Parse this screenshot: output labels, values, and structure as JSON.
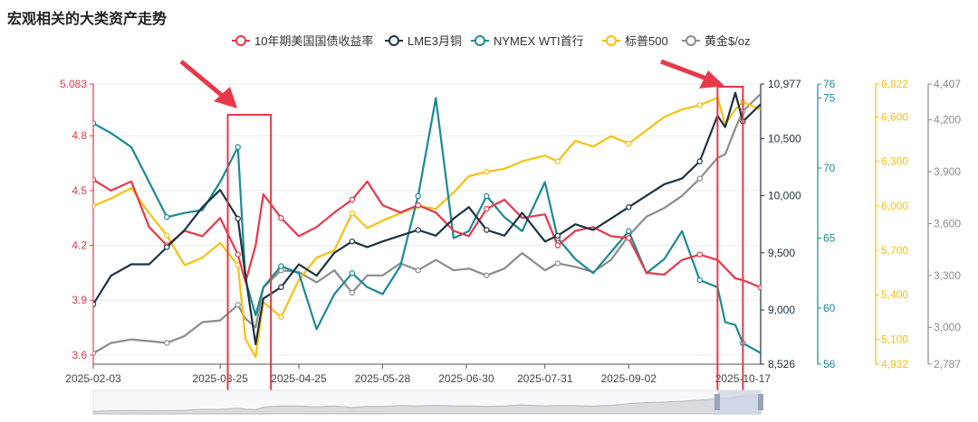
{
  "title": "宏观相关的大类资产走势",
  "chart_data": {
    "type": "line",
    "title": "宏观相关的大类资产走势",
    "x_ticks": [
      "2025-02-03",
      "2025-03-25",
      "2025-04-25",
      "2025-05-28",
      "2025-06-30",
      "2025-07-31",
      "2025-09-02",
      "2025-10-17"
    ],
    "x_range": [
      "2025-02-03",
      "2025-10-24"
    ],
    "legend_position": "top-center",
    "series": [
      {
        "name": "10年期美国国债收益率",
        "color": "#e8394a",
        "axis": "y1",
        "values": [
          {
            "x": "2025-02-03",
            "y": 4.56
          },
          {
            "x": "2025-02-10",
            "y": 4.5
          },
          {
            "x": "2025-02-18",
            "y": 4.55
          },
          {
            "x": "2025-02-25",
            "y": 4.3
          },
          {
            "x": "2025-03-04",
            "y": 4.2
          },
          {
            "x": "2025-03-11",
            "y": 4.28
          },
          {
            "x": "2025-03-18",
            "y": 4.25
          },
          {
            "x": "2025-03-25",
            "y": 4.35
          },
          {
            "x": "2025-04-01",
            "y": 4.15
          },
          {
            "x": "2025-04-04",
            "y": 4.0
          },
          {
            "x": "2025-04-08",
            "y": 4.2
          },
          {
            "x": "2025-04-11",
            "y": 4.48
          },
          {
            "x": "2025-04-18",
            "y": 4.35
          },
          {
            "x": "2025-04-25",
            "y": 4.25
          },
          {
            "x": "2025-05-02",
            "y": 4.3
          },
          {
            "x": "2025-05-09",
            "y": 4.38
          },
          {
            "x": "2025-05-16",
            "y": 4.45
          },
          {
            "x": "2025-05-22",
            "y": 4.55
          },
          {
            "x": "2025-05-28",
            "y": 4.42
          },
          {
            "x": "2025-06-04",
            "y": 4.38
          },
          {
            "x": "2025-06-11",
            "y": 4.42
          },
          {
            "x": "2025-06-18",
            "y": 4.38
          },
          {
            "x": "2025-06-25",
            "y": 4.28
          },
          {
            "x": "2025-07-01",
            "y": 4.25
          },
          {
            "x": "2025-07-08",
            "y": 4.4
          },
          {
            "x": "2025-07-15",
            "y": 4.45
          },
          {
            "x": "2025-07-22",
            "y": 4.35
          },
          {
            "x": "2025-07-31",
            "y": 4.37
          },
          {
            "x": "2025-08-05",
            "y": 4.2
          },
          {
            "x": "2025-08-12",
            "y": 4.28
          },
          {
            "x": "2025-08-19",
            "y": 4.3
          },
          {
            "x": "2025-08-26",
            "y": 4.25
          },
          {
            "x": "2025-09-02",
            "y": 4.24
          },
          {
            "x": "2025-09-09",
            "y": 4.05
          },
          {
            "x": "2025-09-16",
            "y": 4.04
          },
          {
            "x": "2025-09-23",
            "y": 4.12
          },
          {
            "x": "2025-09-30",
            "y": 4.15
          },
          {
            "x": "2025-10-07",
            "y": 4.12
          },
          {
            "x": "2025-10-14",
            "y": 4.02
          },
          {
            "x": "2025-10-17",
            "y": 4.01
          },
          {
            "x": "2025-10-24",
            "y": 3.97
          }
        ]
      },
      {
        "name": "LME3月铜",
        "color": "#1c3341",
        "axis": "y2",
        "values": [
          {
            "x": "2025-02-03",
            "y": 9050
          },
          {
            "x": "2025-02-10",
            "y": 9300
          },
          {
            "x": "2025-02-18",
            "y": 9400
          },
          {
            "x": "2025-02-25",
            "y": 9400
          },
          {
            "x": "2025-03-04",
            "y": 9550
          },
          {
            "x": "2025-03-11",
            "y": 9700
          },
          {
            "x": "2025-03-18",
            "y": 9900
          },
          {
            "x": "2025-03-25",
            "y": 10050
          },
          {
            "x": "2025-04-01",
            "y": 9800
          },
          {
            "x": "2025-04-04",
            "y": 9300
          },
          {
            "x": "2025-04-08",
            "y": 8700
          },
          {
            "x": "2025-04-11",
            "y": 9100
          },
          {
            "x": "2025-04-18",
            "y": 9200
          },
          {
            "x": "2025-04-25",
            "y": 9400
          },
          {
            "x": "2025-05-02",
            "y": 9300
          },
          {
            "x": "2025-05-09",
            "y": 9500
          },
          {
            "x": "2025-05-16",
            "y": 9600
          },
          {
            "x": "2025-05-22",
            "y": 9550
          },
          {
            "x": "2025-05-28",
            "y": 9600
          },
          {
            "x": "2025-06-04",
            "y": 9650
          },
          {
            "x": "2025-06-11",
            "y": 9700
          },
          {
            "x": "2025-06-18",
            "y": 9650
          },
          {
            "x": "2025-06-25",
            "y": 9800
          },
          {
            "x": "2025-07-01",
            "y": 9900
          },
          {
            "x": "2025-07-08",
            "y": 9700
          },
          {
            "x": "2025-07-15",
            "y": 9650
          },
          {
            "x": "2025-07-22",
            "y": 9850
          },
          {
            "x": "2025-07-31",
            "y": 9600
          },
          {
            "x": "2025-08-05",
            "y": 9650
          },
          {
            "x": "2025-08-12",
            "y": 9750
          },
          {
            "x": "2025-08-19",
            "y": 9700
          },
          {
            "x": "2025-08-26",
            "y": 9800
          },
          {
            "x": "2025-09-02",
            "y": 9900
          },
          {
            "x": "2025-09-09",
            "y": 10000
          },
          {
            "x": "2025-09-16",
            "y": 10100
          },
          {
            "x": "2025-09-23",
            "y": 10150
          },
          {
            "x": "2025-09-30",
            "y": 10300
          },
          {
            "x": "2025-10-07",
            "y": 10700
          },
          {
            "x": "2025-10-10",
            "y": 10600
          },
          {
            "x": "2025-10-14",
            "y": 10900
          },
          {
            "x": "2025-10-17",
            "y": 10650
          },
          {
            "x": "2025-10-24",
            "y": 10800
          }
        ]
      },
      {
        "name": "NYMEX WTI首行",
        "color": "#1b8a94",
        "axis": "y3",
        "values": [
          {
            "x": "2025-02-03",
            "y": 73.2
          },
          {
            "x": "2025-02-10",
            "y": 72.5
          },
          {
            "x": "2025-02-18",
            "y": 71.5
          },
          {
            "x": "2025-02-25",
            "y": 69.0
          },
          {
            "x": "2025-03-04",
            "y": 66.5
          },
          {
            "x": "2025-03-11",
            "y": 66.8
          },
          {
            "x": "2025-03-18",
            "y": 67.0
          },
          {
            "x": "2025-03-25",
            "y": 69.0
          },
          {
            "x": "2025-04-01",
            "y": 71.5
          },
          {
            "x": "2025-04-04",
            "y": 62.0
          },
          {
            "x": "2025-04-08",
            "y": 59.5
          },
          {
            "x": "2025-04-11",
            "y": 61.5
          },
          {
            "x": "2025-04-18",
            "y": 63.0
          },
          {
            "x": "2025-04-25",
            "y": 62.5
          },
          {
            "x": "2025-05-02",
            "y": 58.5
          },
          {
            "x": "2025-05-09",
            "y": 61.0
          },
          {
            "x": "2025-05-16",
            "y": 62.5
          },
          {
            "x": "2025-05-22",
            "y": 61.5
          },
          {
            "x": "2025-05-28",
            "y": 61.0
          },
          {
            "x": "2025-06-04",
            "y": 63.0
          },
          {
            "x": "2025-06-11",
            "y": 68.0
          },
          {
            "x": "2025-06-18",
            "y": 75.0
          },
          {
            "x": "2025-06-25",
            "y": 65.0
          },
          {
            "x": "2025-07-01",
            "y": 65.5
          },
          {
            "x": "2025-07-08",
            "y": 68.0
          },
          {
            "x": "2025-07-15",
            "y": 66.5
          },
          {
            "x": "2025-07-22",
            "y": 65.5
          },
          {
            "x": "2025-07-31",
            "y": 69.0
          },
          {
            "x": "2025-08-05",
            "y": 65.0
          },
          {
            "x": "2025-08-12",
            "y": 63.5
          },
          {
            "x": "2025-08-19",
            "y": 62.5
          },
          {
            "x": "2025-08-26",
            "y": 64.0
          },
          {
            "x": "2025-09-02",
            "y": 65.5
          },
          {
            "x": "2025-09-09",
            "y": 62.5
          },
          {
            "x": "2025-09-16",
            "y": 63.5
          },
          {
            "x": "2025-09-23",
            "y": 65.5
          },
          {
            "x": "2025-09-30",
            "y": 62.0
          },
          {
            "x": "2025-10-07",
            "y": 61.5
          },
          {
            "x": "2025-10-10",
            "y": 59.0
          },
          {
            "x": "2025-10-14",
            "y": 58.8
          },
          {
            "x": "2025-10-17",
            "y": 57.5
          },
          {
            "x": "2025-10-24",
            "y": 56.8
          }
        ]
      },
      {
        "name": "标普500",
        "color": "#f5c20d",
        "axis": "y4",
        "values": [
          {
            "x": "2025-02-03",
            "y": 6000
          },
          {
            "x": "2025-02-10",
            "y": 6050
          },
          {
            "x": "2025-02-18",
            "y": 6120
          },
          {
            "x": "2025-02-25",
            "y": 5950
          },
          {
            "x": "2025-03-04",
            "y": 5800
          },
          {
            "x": "2025-03-11",
            "y": 5600
          },
          {
            "x": "2025-03-18",
            "y": 5650
          },
          {
            "x": "2025-03-25",
            "y": 5750
          },
          {
            "x": "2025-04-01",
            "y": 5600
          },
          {
            "x": "2025-04-04",
            "y": 5100
          },
          {
            "x": "2025-04-08",
            "y": 4980
          },
          {
            "x": "2025-04-11",
            "y": 5350
          },
          {
            "x": "2025-04-18",
            "y": 5250
          },
          {
            "x": "2025-04-25",
            "y": 5500
          },
          {
            "x": "2025-05-02",
            "y": 5650
          },
          {
            "x": "2025-05-09",
            "y": 5700
          },
          {
            "x": "2025-05-16",
            "y": 5950
          },
          {
            "x": "2025-05-22",
            "y": 5850
          },
          {
            "x": "2025-05-28",
            "y": 5900
          },
          {
            "x": "2025-06-04",
            "y": 5950
          },
          {
            "x": "2025-06-11",
            "y": 6000
          },
          {
            "x": "2025-06-18",
            "y": 5980
          },
          {
            "x": "2025-06-25",
            "y": 6090
          },
          {
            "x": "2025-07-01",
            "y": 6200
          },
          {
            "x": "2025-07-08",
            "y": 6230
          },
          {
            "x": "2025-07-15",
            "y": 6250
          },
          {
            "x": "2025-07-22",
            "y": 6300
          },
          {
            "x": "2025-07-31",
            "y": 6340
          },
          {
            "x": "2025-08-05",
            "y": 6300
          },
          {
            "x": "2025-08-12",
            "y": 6440
          },
          {
            "x": "2025-08-19",
            "y": 6400
          },
          {
            "x": "2025-08-26",
            "y": 6470
          },
          {
            "x": "2025-09-02",
            "y": 6420
          },
          {
            "x": "2025-09-09",
            "y": 6510
          },
          {
            "x": "2025-09-16",
            "y": 6600
          },
          {
            "x": "2025-09-23",
            "y": 6650
          },
          {
            "x": "2025-09-30",
            "y": 6680
          },
          {
            "x": "2025-10-07",
            "y": 6730
          },
          {
            "x": "2025-10-10",
            "y": 6550
          },
          {
            "x": "2025-10-14",
            "y": 6650
          },
          {
            "x": "2025-10-17",
            "y": 6700
          },
          {
            "x": "2025-10-24",
            "y": 6650
          }
        ]
      },
      {
        "name": "黄金$/oz",
        "color": "#8c8c8c",
        "axis": "y5",
        "values": [
          {
            "x": "2025-02-03",
            "y": 2850
          },
          {
            "x": "2025-02-10",
            "y": 2910
          },
          {
            "x": "2025-02-18",
            "y": 2930
          },
          {
            "x": "2025-02-25",
            "y": 2920
          },
          {
            "x": "2025-03-04",
            "y": 2910
          },
          {
            "x": "2025-03-11",
            "y": 2950
          },
          {
            "x": "2025-03-18",
            "y": 3030
          },
          {
            "x": "2025-03-25",
            "y": 3040
          },
          {
            "x": "2025-04-01",
            "y": 3130
          },
          {
            "x": "2025-04-04",
            "y": 3050
          },
          {
            "x": "2025-04-08",
            "y": 3000
          },
          {
            "x": "2025-04-11",
            "y": 3230
          },
          {
            "x": "2025-04-18",
            "y": 3330
          },
          {
            "x": "2025-04-25",
            "y": 3320
          },
          {
            "x": "2025-05-02",
            "y": 3260
          },
          {
            "x": "2025-05-09",
            "y": 3330
          },
          {
            "x": "2025-05-16",
            "y": 3200
          },
          {
            "x": "2025-05-22",
            "y": 3300
          },
          {
            "x": "2025-05-28",
            "y": 3300
          },
          {
            "x": "2025-06-04",
            "y": 3370
          },
          {
            "x": "2025-06-11",
            "y": 3330
          },
          {
            "x": "2025-06-18",
            "y": 3390
          },
          {
            "x": "2025-06-25",
            "y": 3330
          },
          {
            "x": "2025-07-01",
            "y": 3340
          },
          {
            "x": "2025-07-08",
            "y": 3300
          },
          {
            "x": "2025-07-15",
            "y": 3340
          },
          {
            "x": "2025-07-22",
            "y": 3430
          },
          {
            "x": "2025-07-31",
            "y": 3330
          },
          {
            "x": "2025-08-05",
            "y": 3370
          },
          {
            "x": "2025-08-12",
            "y": 3350
          },
          {
            "x": "2025-08-19",
            "y": 3320
          },
          {
            "x": "2025-08-26",
            "y": 3390
          },
          {
            "x": "2025-09-02",
            "y": 3530
          },
          {
            "x": "2025-09-09",
            "y": 3640
          },
          {
            "x": "2025-09-16",
            "y": 3690
          },
          {
            "x": "2025-09-23",
            "y": 3760
          },
          {
            "x": "2025-09-30",
            "y": 3860
          },
          {
            "x": "2025-10-07",
            "y": 3980
          },
          {
            "x": "2025-10-10",
            "y": 4000
          },
          {
            "x": "2025-10-14",
            "y": 4150
          },
          {
            "x": "2025-10-17",
            "y": 4250
          },
          {
            "x": "2025-10-24",
            "y": 4350
          }
        ]
      }
    ],
    "axes": {
      "y1": {
        "color": "#e8394a",
        "ticks": [
          "5.083",
          "4.8",
          "4.5",
          "4.2",
          "3.9",
          "3.6"
        ],
        "range": [
          3.55,
          5.083
        ]
      },
      "y2": {
        "color": "#1c3341",
        "ticks": [
          "10,977",
          "10,500",
          "10,000",
          "9,500",
          "9,000",
          "8,526"
        ],
        "range": [
          8526,
          10977
        ]
      },
      "y3": {
        "color": "#1b8a94",
        "ticks": [
          "76",
          "75",
          "70",
          "65",
          "60",
          "56"
        ],
        "range": [
          56,
          76
        ]
      },
      "y4": {
        "color": "#f5c20d",
        "ticks": [
          "6,822",
          "6,600",
          "6,300",
          "6,000",
          "5,700",
          "5,400",
          "5,100",
          "4,932"
        ],
        "range": [
          4932,
          6822
        ]
      },
      "y5": {
        "color": "#8c8c8c",
        "ticks": [
          "4,407",
          "4,200",
          "3,900",
          "3,600",
          "3,300",
          "3,000",
          "2,787"
        ],
        "range": [
          2787,
          4407
        ]
      }
    },
    "highlights": [
      {
        "from": "2025-03-28",
        "to": "2025-04-14"
      },
      {
        "from": "2025-10-07",
        "to": "2025-10-17"
      }
    ]
  }
}
